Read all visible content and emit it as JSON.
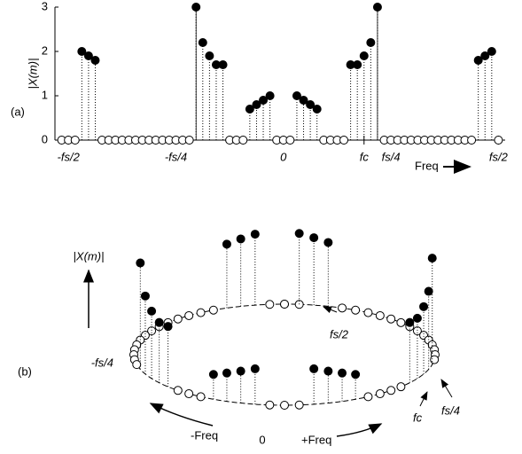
{
  "chart_data": {
    "type": "stem",
    "panel_label": "(a)",
    "ylabel": "|X(m)|",
    "xlabel": "Freq",
    "x": [
      -33,
      -32,
      -31,
      -30,
      -29,
      -28,
      -27,
      -26,
      -25,
      -24,
      -23,
      -22,
      -21,
      -20,
      -19,
      -18,
      -17,
      -16,
      -15,
      -14,
      -13,
      -12,
      -11,
      -10,
      -9,
      -8,
      -7,
      -6,
      -5,
      -4,
      -3,
      -2,
      -1,
      0,
      1,
      2,
      3,
      4,
      5,
      6,
      7,
      8,
      9,
      10,
      11,
      12,
      13,
      14,
      15,
      16,
      17,
      18,
      19,
      20,
      21,
      22,
      23,
      24,
      25,
      26,
      27,
      28,
      29,
      30,
      31,
      32
    ],
    "values": [
      0,
      0,
      0,
      2.0,
      1.9,
      1.8,
      0,
      0,
      0,
      0,
      0,
      0,
      0,
      0,
      0,
      0,
      0,
      0,
      0,
      0,
      3,
      2.2,
      1.9,
      1.7,
      1.7,
      0,
      0,
      0,
      0.7,
      0.8,
      0.9,
      1.0,
      0,
      0,
      0,
      1.0,
      0.9,
      0.8,
      0.7,
      0,
      0,
      0,
      0,
      1.7,
      1.7,
      1.9,
      2.2,
      3,
      0,
      0,
      0,
      0,
      0,
      0,
      0,
      0,
      0,
      0,
      0,
      0,
      0,
      0,
      1.8,
      1.9,
      2.0,
      0
    ],
    "color": "#000000",
    "xlim": [
      -34,
      33
    ],
    "ylim": [
      0,
      3
    ],
    "yticks": [
      0,
      1,
      2,
      3
    ],
    "xticks": [
      {
        "value": -32,
        "label": "-fs/2"
      },
      {
        "value": -16,
        "label": "-fs/4"
      },
      0,
      {
        "value": 12,
        "label": "fc"
      },
      {
        "value": 16,
        "label": "fs/4"
      },
      {
        "value": 32,
        "label": "fs/2"
      }
    ],
    "grid": false
  },
  "diagram": {
    "panel_label": "(b)",
    "axis_label": "|X(m)|",
    "labels": [
      "-fs/4",
      "fs/2",
      "fs/4",
      "fc",
      "-Freq",
      "0",
      "+Freq"
    ]
  }
}
